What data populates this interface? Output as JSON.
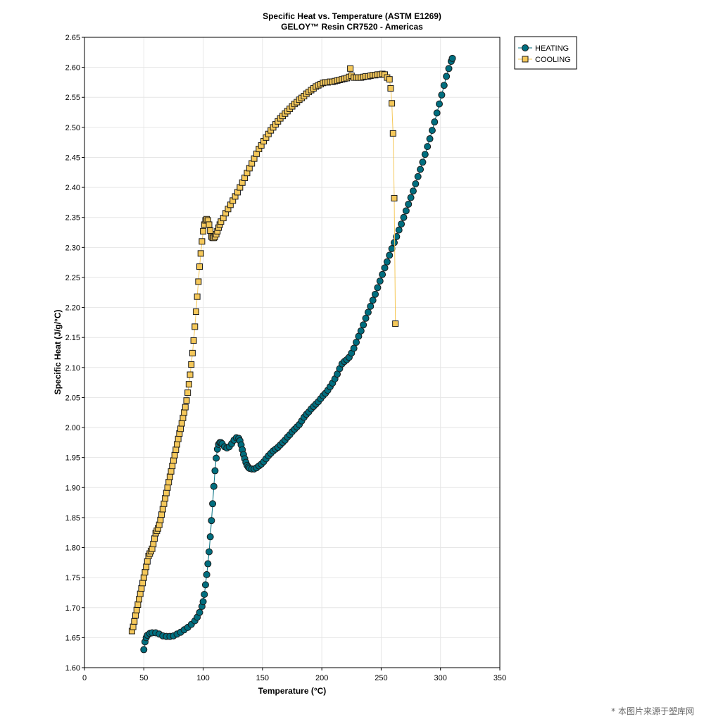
{
  "chart_data": {
    "type": "scatter",
    "title": "Specific Heat vs. Temperature (ASTM E1269)",
    "subtitle": "GELOY™ Resin CR7520 - Americas",
    "xlabel": "Temperature (°C)",
    "ylabel": "Specific Heat (J/g/°C)",
    "xlim": [
      0,
      350
    ],
    "ylim": [
      1.6,
      2.65
    ],
    "x_ticks": [
      "0",
      "50",
      "100",
      "150",
      "200",
      "250",
      "300",
      "350"
    ],
    "y_ticks": [
      "1.60",
      "1.65",
      "1.70",
      "1.75",
      "1.80",
      "1.85",
      "1.90",
      "1.95",
      "2.00",
      "2.05",
      "2.10",
      "2.15",
      "2.20",
      "2.25",
      "2.30",
      "2.35",
      "2.40",
      "2.45",
      "2.50",
      "2.55",
      "2.60",
      "2.65"
    ],
    "grid": true,
    "legend_position": "top-right, outside plot",
    "series": [
      {
        "name": "HEATING",
        "color": "#006e7f",
        "marker": "circle",
        "points": [
          [
            50,
            1.63
          ],
          [
            51,
            1.643
          ],
          [
            52,
            1.65
          ],
          [
            53,
            1.654
          ],
          [
            55,
            1.657
          ],
          [
            57,
            1.658
          ],
          [
            60,
            1.658
          ],
          [
            63,
            1.656
          ],
          [
            66,
            1.653
          ],
          [
            69,
            1.652
          ],
          [
            72,
            1.652
          ],
          [
            75,
            1.653
          ],
          [
            78,
            1.656
          ],
          [
            81,
            1.659
          ],
          [
            84,
            1.663
          ],
          [
            87,
            1.667
          ],
          [
            90,
            1.672
          ],
          [
            93,
            1.678
          ],
          [
            95,
            1.684
          ],
          [
            97,
            1.692
          ],
          [
            99,
            1.702
          ],
          [
            100,
            1.71
          ],
          [
            101,
            1.722
          ],
          [
            102,
            1.738
          ],
          [
            103,
            1.755
          ],
          [
            104,
            1.773
          ],
          [
            105,
            1.793
          ],
          [
            106,
            1.818
          ],
          [
            107,
            1.845
          ],
          [
            108,
            1.873
          ],
          [
            109,
            1.902
          ],
          [
            110,
            1.928
          ],
          [
            111,
            1.949
          ],
          [
            112,
            1.964
          ],
          [
            113,
            1.972
          ],
          [
            114,
            1.975
          ],
          [
            115,
            1.975
          ],
          [
            116,
            1.973
          ],
          [
            118,
            1.968
          ],
          [
            120,
            1.966
          ],
          [
            122,
            1.968
          ],
          [
            124,
            1.973
          ],
          [
            126,
            1.979
          ],
          [
            128,
            1.983
          ],
          [
            130,
            1.982
          ],
          [
            131,
            1.978
          ],
          [
            132,
            1.971
          ],
          [
            133,
            1.963
          ],
          [
            134,
            1.955
          ],
          [
            135,
            1.948
          ],
          [
            136,
            1.942
          ],
          [
            137,
            1.937
          ],
          [
            138,
            1.934
          ],
          [
            139,
            1.932
          ],
          [
            141,
            1.931
          ],
          [
            143,
            1.931
          ],
          [
            145,
            1.933
          ],
          [
            147,
            1.936
          ],
          [
            149,
            1.939
          ],
          [
            151,
            1.943
          ],
          [
            153,
            1.948
          ],
          [
            155,
            1.953
          ],
          [
            157,
            1.957
          ],
          [
            159,
            1.961
          ],
          [
            161,
            1.964
          ],
          [
            163,
            1.967
          ],
          [
            165,
            1.971
          ],
          [
            167,
            1.975
          ],
          [
            169,
            1.979
          ],
          [
            171,
            1.984
          ],
          [
            173,
            1.988
          ],
          [
            175,
            1.993
          ],
          [
            177,
            1.997
          ],
          [
            179,
            2.001
          ],
          [
            181,
            2.005
          ],
          [
            183,
            2.011
          ],
          [
            185,
            2.017
          ],
          [
            187,
            2.022
          ],
          [
            189,
            2.026
          ],
          [
            191,
            2.031
          ],
          [
            193,
            2.035
          ],
          [
            195,
            2.039
          ],
          [
            197,
            2.043
          ],
          [
            199,
            2.048
          ],
          [
            201,
            2.053
          ],
          [
            203,
            2.057
          ],
          [
            205,
            2.062
          ],
          [
            207,
            2.068
          ],
          [
            209,
            2.074
          ],
          [
            211,
            2.081
          ],
          [
            213,
            2.089
          ],
          [
            215,
            2.098
          ],
          [
            217,
            2.106
          ],
          [
            219,
            2.11
          ],
          [
            221,
            2.113
          ],
          [
            223,
            2.117
          ],
          [
            225,
            2.124
          ],
          [
            227,
            2.132
          ],
          [
            229,
            2.142
          ],
          [
            231,
            2.152
          ],
          [
            233,
            2.161
          ],
          [
            235,
            2.171
          ],
          [
            237,
            2.182
          ],
          [
            239,
            2.192
          ],
          [
            241,
            2.202
          ],
          [
            243,
            2.212
          ],
          [
            245,
            2.222
          ],
          [
            247,
            2.233
          ],
          [
            249,
            2.244
          ],
          [
            251,
            2.255
          ],
          [
            253,
            2.266
          ],
          [
            255,
            2.276
          ],
          [
            257,
            2.287
          ],
          [
            259,
            2.298
          ],
          [
            261,
            2.308
          ],
          [
            263,
            2.318
          ],
          [
            265,
            2.329
          ],
          [
            267,
            2.339
          ],
          [
            269,
            2.35
          ],
          [
            271,
            2.361
          ],
          [
            273,
            2.372
          ],
          [
            275,
            2.383
          ],
          [
            277,
            2.394
          ],
          [
            279,
            2.406
          ],
          [
            281,
            2.418
          ],
          [
            283,
            2.43
          ],
          [
            285,
            2.442
          ],
          [
            287,
            2.455
          ],
          [
            289,
            2.468
          ],
          [
            291,
            2.481
          ],
          [
            293,
            2.495
          ],
          [
            295,
            2.509
          ],
          [
            297,
            2.524
          ],
          [
            299,
            2.539
          ],
          [
            301,
            2.554
          ],
          [
            303,
            2.57
          ],
          [
            305,
            2.585
          ],
          [
            307,
            2.598
          ],
          [
            309,
            2.61
          ],
          [
            310,
            2.615
          ]
        ]
      },
      {
        "name": "COOLING",
        "color": "#f5c85a",
        "marker": "square",
        "points": [
          [
            40,
            1.661
          ],
          [
            41,
            1.668
          ],
          [
            42,
            1.677
          ],
          [
            43,
            1.687
          ],
          [
            44,
            1.696
          ],
          [
            45,
            1.705
          ],
          [
            46,
            1.714
          ],
          [
            47,
            1.723
          ],
          [
            48,
            1.732
          ],
          [
            49,
            1.741
          ],
          [
            50,
            1.75
          ],
          [
            51,
            1.759
          ],
          [
            52,
            1.768
          ],
          [
            53,
            1.777
          ],
          [
            54,
            1.786
          ],
          [
            55,
            1.79
          ],
          [
            56,
            1.794
          ],
          [
            57,
            1.798
          ],
          [
            58,
            1.806
          ],
          [
            59,
            1.815
          ],
          [
            60,
            1.824
          ],
          [
            61,
            1.828
          ],
          [
            62,
            1.832
          ],
          [
            63,
            1.838
          ],
          [
            64,
            1.846
          ],
          [
            65,
            1.855
          ],
          [
            66,
            1.864
          ],
          [
            67,
            1.873
          ],
          [
            68,
            1.882
          ],
          [
            69,
            1.891
          ],
          [
            70,
            1.9
          ],
          [
            71,
            1.909
          ],
          [
            72,
            1.918
          ],
          [
            73,
            1.927
          ],
          [
            74,
            1.936
          ],
          [
            75,
            1.945
          ],
          [
            76,
            1.954
          ],
          [
            77,
            1.963
          ],
          [
            78,
            1.972
          ],
          [
            79,
            1.981
          ],
          [
            80,
            1.99
          ],
          [
            81,
            1.998
          ],
          [
            82,
            2.007
          ],
          [
            83,
            2.016
          ],
          [
            84,
            2.025
          ],
          [
            85,
            2.034
          ],
          [
            86,
            2.045
          ],
          [
            87,
            2.058
          ],
          [
            88,
            2.072
          ],
          [
            89,
            2.088
          ],
          [
            90,
            2.105
          ],
          [
            91,
            2.124
          ],
          [
            92,
            2.145
          ],
          [
            93,
            2.168
          ],
          [
            94,
            2.193
          ],
          [
            95,
            2.218
          ],
          [
            96,
            2.243
          ],
          [
            97,
            2.268
          ],
          [
            98,
            2.29
          ],
          [
            99,
            2.31
          ],
          [
            100,
            2.327
          ],
          [
            101,
            2.338
          ],
          [
            102,
            2.345
          ],
          [
            103,
            2.347
          ],
          [
            104,
            2.345
          ],
          [
            105,
            2.338
          ],
          [
            106,
            2.328
          ],
          [
            107,
            2.318
          ],
          [
            108,
            2.316
          ],
          [
            109,
            2.316
          ],
          [
            110,
            2.318
          ],
          [
            111,
            2.322
          ],
          [
            112,
            2.327
          ],
          [
            113,
            2.333
          ],
          [
            114,
            2.338
          ],
          [
            115,
            2.343
          ],
          [
            117,
            2.349
          ],
          [
            119,
            2.357
          ],
          [
            121,
            2.364
          ],
          [
            123,
            2.371
          ],
          [
            125,
            2.378
          ],
          [
            127,
            2.385
          ],
          [
            129,
            2.392
          ],
          [
            131,
            2.4
          ],
          [
            133,
            2.408
          ],
          [
            135,
            2.416
          ],
          [
            137,
            2.424
          ],
          [
            139,
            2.432
          ],
          [
            141,
            2.44
          ],
          [
            143,
            2.448
          ],
          [
            145,
            2.456
          ],
          [
            147,
            2.464
          ],
          [
            149,
            2.47
          ],
          [
            151,
            2.477
          ],
          [
            153,
            2.483
          ],
          [
            155,
            2.489
          ],
          [
            157,
            2.495
          ],
          [
            159,
            2.5
          ],
          [
            161,
            2.505
          ],
          [
            163,
            2.51
          ],
          [
            165,
            2.515
          ],
          [
            167,
            2.519
          ],
          [
            169,
            2.523
          ],
          [
            171,
            2.527
          ],
          [
            173,
            2.531
          ],
          [
            175,
            2.535
          ],
          [
            177,
            2.539
          ],
          [
            179,
            2.542
          ],
          [
            181,
            2.546
          ],
          [
            183,
            2.549
          ],
          [
            185,
            2.552
          ],
          [
            187,
            2.556
          ],
          [
            189,
            2.559
          ],
          [
            191,
            2.562
          ],
          [
            193,
            2.565
          ],
          [
            195,
            2.568
          ],
          [
            197,
            2.57
          ],
          [
            199,
            2.572
          ],
          [
            201,
            2.574
          ],
          [
            203,
            2.575
          ],
          [
            205,
            2.575
          ],
          [
            207,
            2.576
          ],
          [
            209,
            2.576
          ],
          [
            211,
            2.577
          ],
          [
            213,
            2.578
          ],
          [
            215,
            2.579
          ],
          [
            217,
            2.58
          ],
          [
            219,
            2.581
          ],
          [
            221,
            2.582
          ],
          [
            223,
            2.584
          ],
          [
            224,
            2.598
          ],
          [
            225,
            2.586
          ],
          [
            227,
            2.583
          ],
          [
            229,
            2.583
          ],
          [
            231,
            2.583
          ],
          [
            233,
            2.583
          ],
          [
            235,
            2.584
          ],
          [
            237,
            2.585
          ],
          [
            239,
            2.585
          ],
          [
            241,
            2.586
          ],
          [
            243,
            2.587
          ],
          [
            245,
            2.587
          ],
          [
            247,
            2.588
          ],
          [
            249,
            2.588
          ],
          [
            251,
            2.589
          ],
          [
            253,
            2.588
          ],
          [
            255,
            2.583
          ],
          [
            257,
            2.58
          ],
          [
            258,
            2.565
          ],
          [
            259,
            2.54
          ],
          [
            260,
            2.49
          ],
          [
            261,
            2.382
          ],
          [
            262,
            2.173
          ]
        ]
      }
    ]
  },
  "watermark_text": "* 本图片来源于塑库网"
}
